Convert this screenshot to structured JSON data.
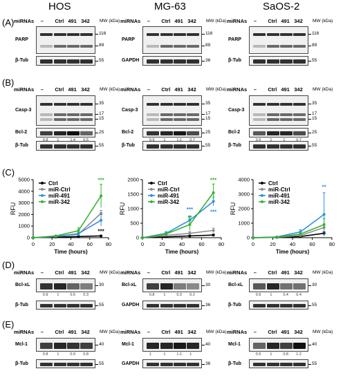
{
  "columns": [
    "HOS",
    "MG-63",
    "SaOS-2"
  ],
  "panels": [
    "(A)",
    "(B)",
    "(C)",
    "(D)",
    "(E)"
  ],
  "lane_header": {
    "label": "miRNAs",
    "lanes": [
      "–",
      "Ctrl",
      "491",
      "342"
    ],
    "mw": "MW (kDa)"
  },
  "blots": {
    "A": {
      "HOS": [
        {
          "label": "PARP",
          "marks": [
            "116",
            "89"
          ]
        },
        {
          "label": "β-Tub",
          "marks": [
            "55"
          ]
        }
      ],
      "MG-63": [
        {
          "label": "PARP",
          "marks": [
            "116",
            "89"
          ]
        },
        {
          "label": "GAPDH",
          "marks": [
            "36"
          ]
        }
      ],
      "SaOS-2": [
        {
          "label": "PARP",
          "marks": [
            "116",
            "89"
          ]
        },
        {
          "label": "β-Tub",
          "marks": [
            "55"
          ]
        }
      ]
    },
    "B": {
      "HOS": [
        {
          "label": "Casp-3",
          "marks": [
            "35",
            "17",
            "15"
          ]
        },
        {
          "label": "Bcl-2",
          "marks": [
            "25"
          ],
          "quant": [
            "0.8",
            "1",
            "1.4",
            "0.5"
          ]
        },
        {
          "label": "β-Tub",
          "marks": [
            "55"
          ]
        }
      ],
      "MG-63": [
        {
          "label": "Casp-3",
          "marks": [
            "35",
            "17",
            "15"
          ]
        },
        {
          "label": "Bcl-2",
          "marks": [
            "25"
          ],
          "quant": [
            "0.9",
            "1",
            "1.1",
            "0.7"
          ]
        },
        {
          "label": "β-Tub",
          "marks": [
            "55"
          ]
        }
      ],
      "SaOS-2": [
        {
          "label": "Casp-3",
          "marks": [
            "35",
            "17",
            "15"
          ]
        },
        {
          "label": "Bcl-2",
          "marks": [
            "25"
          ],
          "quant": [
            "0.6",
            "1",
            "1",
            "0.7"
          ]
        },
        {
          "label": "β-Tub",
          "marks": [
            "55"
          ]
        }
      ]
    },
    "D": {
      "HOS": [
        {
          "label": "Bcl-xL",
          "marks": [
            "30"
          ],
          "quant": [
            "0.9",
            "1",
            "0.5",
            "0.3"
          ]
        },
        {
          "label": "β-Tub",
          "marks": [
            "55"
          ]
        }
      ],
      "MG-63": [
        {
          "label": "Bcl-xL",
          "marks": [
            "30"
          ],
          "quant": [
            "0.8",
            "1",
            "0.3",
            "0.2"
          ]
        },
        {
          "label": "GAPDH",
          "marks": [
            "36"
          ]
        }
      ],
      "SaOS-2": [
        {
          "label": "Bcl-xL",
          "marks": [
            "30"
          ],
          "quant": [
            "0.6",
            "1",
            "0.4",
            "0.4"
          ]
        },
        {
          "label": "β-Tub",
          "marks": [
            "55"
          ]
        }
      ]
    },
    "E": {
      "HOS": [
        {
          "label": "Mcl-1",
          "marks": [
            "40"
          ],
          "quant": [
            "0.8",
            "1",
            "0.9",
            "0.8"
          ]
        },
        {
          "label": "β-Tub",
          "marks": [
            "55"
          ]
        }
      ],
      "MG-63": [
        {
          "label": "Mcl-1",
          "marks": [
            "40"
          ],
          "quant": [
            "1",
            "1",
            "1.1",
            "1"
          ]
        },
        {
          "label": "GAPDH",
          "marks": [
            "36"
          ]
        }
      ],
      "SaOS-2": [
        {
          "label": "Mcl-1",
          "marks": [
            "40"
          ],
          "quant": [
            "0.5",
            "1",
            "0.8",
            "1.2"
          ]
        },
        {
          "label": "β-Tub",
          "marks": [
            "55"
          ]
        }
      ]
    }
  },
  "chart_data": [
    {
      "type": "line",
      "panel": "HOS",
      "ylabel": "RFU",
      "xlabel": "Time (hours)",
      "ylim": [
        0,
        5000
      ],
      "xlim": [
        0,
        80
      ],
      "yticks": [
        "0",
        "1000",
        "2000",
        "3000",
        "4000",
        "5000"
      ],
      "xticks": [
        "0",
        "20",
        "40",
        "60",
        "80"
      ],
      "x": [
        0,
        24,
        48,
        72
      ],
      "series": [
        {
          "name": "Ctrl",
          "color": "#000000",
          "values": [
            0,
            50,
            100,
            150
          ],
          "err": [
            0,
            20,
            30,
            60
          ]
        },
        {
          "name": "miR-Ctrl",
          "color": "#8c8c8c",
          "values": [
            0,
            100,
            300,
            2100
          ],
          "err": [
            0,
            40,
            150,
            250
          ]
        },
        {
          "name": "miR-491",
          "color": "#2e8fe6",
          "values": [
            0,
            120,
            350,
            1500
          ],
          "err": [
            0,
            50,
            200,
            500
          ]
        },
        {
          "name": "miR-342",
          "color": "#34b233",
          "values": [
            0,
            150,
            600,
            3600
          ],
          "err": [
            0,
            60,
            250,
            1000
          ]
        }
      ],
      "annotations": [
        {
          "text": "***",
          "color": "#34b233",
          "x": 72,
          "y": 4800
        },
        {
          "text": "***",
          "color": "#000000",
          "x": 72,
          "y": 400
        }
      ]
    },
    {
      "type": "line",
      "panel": "MG-63",
      "ylabel": "RFU",
      "xlabel": "Time (hours)",
      "ylim": [
        0,
        2000
      ],
      "xlim": [
        0,
        80
      ],
      "yticks": [
        "0",
        "500",
        "1000",
        "1500",
        "2000"
      ],
      "xticks": [
        "0",
        "20",
        "40",
        "60",
        "80"
      ],
      "x": [
        0,
        24,
        48,
        72
      ],
      "series": [
        {
          "name": "Ctrl",
          "color": "#000000",
          "values": [
            0,
            30,
            60,
            90
          ],
          "err": [
            0,
            10,
            20,
            30
          ]
        },
        {
          "name": "miR-Ctrl",
          "color": "#8c8c8c",
          "values": [
            0,
            80,
            150,
            250
          ],
          "err": [
            0,
            40,
            60,
            80
          ]
        },
        {
          "name": "miR-491",
          "color": "#2e8fe6",
          "values": [
            0,
            150,
            600,
            1250
          ],
          "err": [
            0,
            60,
            150,
            150
          ]
        },
        {
          "name": "miR-342",
          "color": "#34b233",
          "values": [
            0,
            130,
            450,
            1550
          ],
          "err": [
            0,
            50,
            200,
            300
          ]
        }
      ],
      "annotations": [
        {
          "text": "***",
          "color": "#34b233",
          "x": 72,
          "y": 1920
        },
        {
          "text": "***",
          "color": "#2e8fe6",
          "x": 48,
          "y": 900
        },
        {
          "text": "**",
          "color": "#34b233",
          "x": 48,
          "y": 620
        },
        {
          "text": "***",
          "color": "#2e8fe6",
          "x": 72,
          "y": 820
        }
      ]
    },
    {
      "type": "line",
      "panel": "SaOS-2",
      "ylabel": "RFU",
      "xlabel": "Time (hours)",
      "ylim": [
        0,
        4000
      ],
      "xlim": [
        0,
        80
      ],
      "yticks": [
        "0",
        "1000",
        "2000",
        "3000",
        "4000"
      ],
      "xticks": [
        "0",
        "20",
        "40",
        "60",
        "80"
      ],
      "x": [
        0,
        24,
        48,
        72
      ],
      "series": [
        {
          "name": "Ctrl",
          "color": "#000000",
          "values": [
            0,
            20,
            80,
            300
          ],
          "err": [
            0,
            10,
            40,
            100
          ]
        },
        {
          "name": "miR-Ctrl",
          "color": "#8c8c8c",
          "values": [
            0,
            30,
            150,
            700
          ],
          "err": [
            0,
            20,
            60,
            250
          ]
        },
        {
          "name": "miR-491",
          "color": "#2e8fe6",
          "values": [
            0,
            50,
            400,
            1600
          ],
          "err": [
            0,
            30,
            150,
            1500
          ]
        },
        {
          "name": "miR-342",
          "color": "#34b233",
          "values": [
            0,
            40,
            250,
            900
          ],
          "err": [
            0,
            20,
            100,
            400
          ]
        }
      ],
      "annotations": [
        {
          "text": "**",
          "color": "#2e8fe6",
          "x": 72,
          "y": 3350
        }
      ]
    }
  ]
}
